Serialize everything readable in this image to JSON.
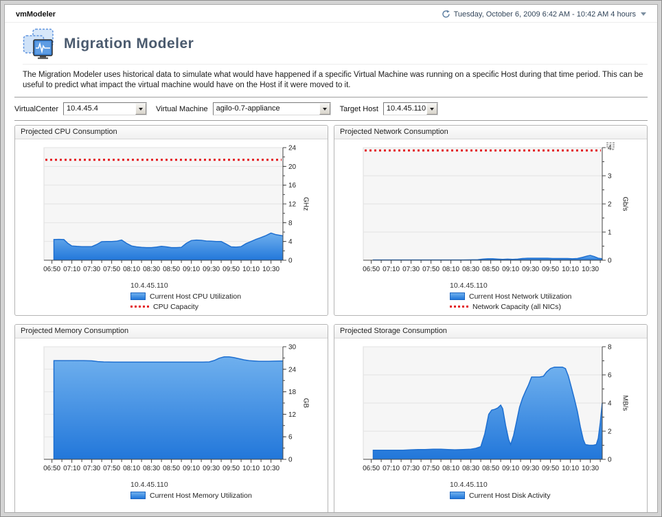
{
  "window": {
    "app_title": "vmModeler",
    "time_range_label": "Tuesday, October 6, 2009 6:42 AM - 10:42 AM 4 hours"
  },
  "header": {
    "title": "Migration Modeler",
    "description": "The Migration Modeler uses historical data to simulate what would have happened if a specific Virtual Machine was running on a specific Host during that time period. This can be useful to predict what impact the virtual machine would have on the Host if it were moved to it."
  },
  "filters": {
    "virtualcenter_label": "VirtualCenter",
    "virtualcenter_value": "10.4.45.4",
    "vm_label": "Virtual Machine",
    "vm_value": "agilo-0.7-appliance",
    "target_host_label": "Target Host",
    "target_host_value": "10.4.45.110"
  },
  "colors": {
    "area_fill_top": "#6fb0ee",
    "area_fill_bottom": "#2277da",
    "area_stroke": "#1e6fd0",
    "capacity_red": "#e3191d",
    "axis": "#444444",
    "grid": "#e3e3e3",
    "plot_bg": "#f6f6f6",
    "title_color": "#4a5a6e"
  },
  "chart_data": [
    {
      "type": "area",
      "title": "Projected CPU Consumption",
      "host": "10.4.45.110",
      "series_label": "Current Host CPU Utilization",
      "capacity_label": "CPU Capacity",
      "capacity_value": 21.4,
      "unit": "GHz",
      "ylim": [
        0,
        24
      ],
      "yticks": [
        0,
        4,
        8,
        12,
        16,
        20,
        24
      ],
      "y_minor": 2,
      "x_domain": [
        0,
        240
      ],
      "xtick_minutes": [
        8,
        28,
        48,
        68,
        88,
        108,
        128,
        148,
        168,
        188,
        208,
        228
      ],
      "xtick_labels": [
        "06:50",
        "07:10",
        "07:30",
        "07:50",
        "08:10",
        "08:30",
        "08:50",
        "09:10",
        "09:30",
        "09:50",
        "10:10",
        "10:30"
      ],
      "points": [
        [
          10,
          4.4
        ],
        [
          15,
          4.45
        ],
        [
          20,
          4.4
        ],
        [
          24,
          3.6
        ],
        [
          28,
          3.05
        ],
        [
          33,
          2.95
        ],
        [
          38,
          2.9
        ],
        [
          43,
          2.9
        ],
        [
          48,
          2.9
        ],
        [
          53,
          3.35
        ],
        [
          58,
          3.95
        ],
        [
          63,
          4.0
        ],
        [
          68,
          4.0
        ],
        [
          73,
          4.05
        ],
        [
          78,
          4.3
        ],
        [
          83,
          3.6
        ],
        [
          88,
          3.05
        ],
        [
          93,
          2.85
        ],
        [
          98,
          2.75
        ],
        [
          103,
          2.7
        ],
        [
          108,
          2.7
        ],
        [
          113,
          2.8
        ],
        [
          118,
          2.95
        ],
        [
          123,
          2.85
        ],
        [
          128,
          2.7
        ],
        [
          133,
          2.7
        ],
        [
          138,
          2.75
        ],
        [
          143,
          3.6
        ],
        [
          148,
          4.2
        ],
        [
          153,
          4.3
        ],
        [
          158,
          4.25
        ],
        [
          163,
          4.1
        ],
        [
          168,
          4.05
        ],
        [
          173,
          4.0
        ],
        [
          178,
          4.0
        ],
        [
          183,
          3.45
        ],
        [
          188,
          2.85
        ],
        [
          193,
          2.8
        ],
        [
          198,
          2.9
        ],
        [
          203,
          3.55
        ],
        [
          208,
          4.0
        ],
        [
          213,
          4.45
        ],
        [
          218,
          4.85
        ],
        [
          223,
          5.25
        ],
        [
          228,
          5.8
        ],
        [
          233,
          5.45
        ],
        [
          240,
          5.2
        ]
      ]
    },
    {
      "type": "area",
      "title": "Projected Network Consumption",
      "host": "10.4.45.110",
      "series_label": "Current Host Network Utilization",
      "capacity_label": "Network Capacity (all NICs)",
      "capacity_value": 3.9,
      "unit": "Gb/s",
      "ylim": [
        0,
        4
      ],
      "yticks": [
        0,
        1,
        2,
        3,
        4
      ],
      "y_minor": 0.5,
      "x_domain": [
        0,
        240
      ],
      "xtick_minutes": [
        8,
        28,
        48,
        68,
        88,
        108,
        128,
        148,
        168,
        188,
        208,
        228
      ],
      "xtick_labels": [
        "06:50",
        "07:10",
        "07:30",
        "07:50",
        "08:10",
        "08:30",
        "08:50",
        "09:10",
        "09:30",
        "09:50",
        "10:10",
        "10:30"
      ],
      "points": [
        [
          10,
          0.01
        ],
        [
          60,
          0.01
        ],
        [
          100,
          0.01
        ],
        [
          115,
          0.02
        ],
        [
          120,
          0.04
        ],
        [
          125,
          0.05
        ],
        [
          130,
          0.05
        ],
        [
          135,
          0.04
        ],
        [
          140,
          0.03
        ],
        [
          145,
          0.04
        ],
        [
          150,
          0.03
        ],
        [
          155,
          0.04
        ],
        [
          160,
          0.06
        ],
        [
          165,
          0.07
        ],
        [
          170,
          0.07
        ],
        [
          175,
          0.07
        ],
        [
          180,
          0.07
        ],
        [
          185,
          0.07
        ],
        [
          190,
          0.06
        ],
        [
          195,
          0.06
        ],
        [
          200,
          0.06
        ],
        [
          205,
          0.06
        ],
        [
          210,
          0.05
        ],
        [
          215,
          0.06
        ],
        [
          220,
          0.1
        ],
        [
          225,
          0.15
        ],
        [
          228,
          0.17
        ],
        [
          232,
          0.13
        ],
        [
          236,
          0.07
        ],
        [
          240,
          0.05
        ]
      ]
    },
    {
      "type": "area",
      "title": "Projected Memory Consumption",
      "host": "10.4.45.110",
      "series_label": "Current Host Memory Utilization",
      "capacity_label": null,
      "capacity_value": null,
      "unit": "GB",
      "ylim": [
        0,
        30
      ],
      "yticks": [
        0,
        6,
        12,
        18,
        24,
        30
      ],
      "y_minor": 3,
      "x_domain": [
        0,
        240
      ],
      "xtick_minutes": [
        8,
        28,
        48,
        68,
        88,
        108,
        128,
        148,
        168,
        188,
        208,
        228
      ],
      "xtick_labels": [
        "06:50",
        "07:10",
        "07:30",
        "07:50",
        "08:10",
        "08:30",
        "08:50",
        "09:10",
        "09:30",
        "09:50",
        "10:10",
        "10:30"
      ],
      "points": [
        [
          10,
          26.3
        ],
        [
          20,
          26.3
        ],
        [
          30,
          26.3
        ],
        [
          40,
          26.3
        ],
        [
          48,
          26.25
        ],
        [
          54,
          26.05
        ],
        [
          60,
          25.95
        ],
        [
          70,
          25.9
        ],
        [
          80,
          25.9
        ],
        [
          90,
          25.9
        ],
        [
          100,
          25.9
        ],
        [
          110,
          25.9
        ],
        [
          120,
          25.9
        ],
        [
          130,
          25.9
        ],
        [
          140,
          25.9
        ],
        [
          150,
          25.9
        ],
        [
          160,
          25.9
        ],
        [
          166,
          25.95
        ],
        [
          171,
          26.35
        ],
        [
          176,
          26.95
        ],
        [
          181,
          27.3
        ],
        [
          186,
          27.3
        ],
        [
          191,
          27.1
        ],
        [
          196,
          26.8
        ],
        [
          201,
          26.5
        ],
        [
          206,
          26.3
        ],
        [
          211,
          26.2
        ],
        [
          216,
          26.1
        ],
        [
          221,
          26.1
        ],
        [
          226,
          26.1
        ],
        [
          231,
          26.15
        ],
        [
          240,
          26.2
        ]
      ]
    },
    {
      "type": "area",
      "title": "Projected Storage Consumption",
      "host": "10.4.45.110",
      "series_label": "Current Host Disk Activity",
      "capacity_label": null,
      "capacity_value": null,
      "unit": "MB/s",
      "ylim": [
        0,
        8
      ],
      "yticks": [
        0,
        2,
        4,
        6,
        8
      ],
      "y_minor": 1,
      "x_domain": [
        0,
        240
      ],
      "xtick_minutes": [
        8,
        28,
        48,
        68,
        88,
        108,
        128,
        148,
        168,
        188,
        208,
        228
      ],
      "xtick_labels": [
        "06:50",
        "07:10",
        "07:30",
        "07:50",
        "08:10",
        "08:30",
        "08:50",
        "09:10",
        "09:30",
        "09:50",
        "10:10",
        "10:30"
      ],
      "points": [
        [
          10,
          0.65
        ],
        [
          20,
          0.65
        ],
        [
          30,
          0.65
        ],
        [
          40,
          0.65
        ],
        [
          48,
          0.68
        ],
        [
          55,
          0.7
        ],
        [
          62,
          0.7
        ],
        [
          70,
          0.72
        ],
        [
          78,
          0.72
        ],
        [
          85,
          0.7
        ],
        [
          92,
          0.68
        ],
        [
          100,
          0.7
        ],
        [
          108,
          0.72
        ],
        [
          113,
          0.78
        ],
        [
          118,
          0.9
        ],
        [
          122,
          1.8
        ],
        [
          126,
          3.2
        ],
        [
          129,
          3.5
        ],
        [
          132,
          3.55
        ],
        [
          135,
          3.65
        ],
        [
          138,
          3.85
        ],
        [
          140,
          3.6
        ],
        [
          143,
          2.4
        ],
        [
          146,
          1.4
        ],
        [
          148,
          1.05
        ],
        [
          151,
          1.7
        ],
        [
          154,
          2.7
        ],
        [
          157,
          3.7
        ],
        [
          160,
          4.35
        ],
        [
          163,
          4.85
        ],
        [
          166,
          5.3
        ],
        [
          169,
          5.85
        ],
        [
          173,
          5.85
        ],
        [
          177,
          5.85
        ],
        [
          181,
          5.9
        ],
        [
          184,
          6.2
        ],
        [
          188,
          6.45
        ],
        [
          192,
          6.55
        ],
        [
          196,
          6.55
        ],
        [
          200,
          6.55
        ],
        [
          203,
          6.45
        ],
        [
          206,
          5.9
        ],
        [
          209,
          5.1
        ],
        [
          212,
          4.3
        ],
        [
          215,
          3.4
        ],
        [
          218,
          2.3
        ],
        [
          221,
          1.4
        ],
        [
          223,
          1.05
        ],
        [
          227,
          1.0
        ],
        [
          231,
          1.0
        ],
        [
          234,
          1.05
        ],
        [
          236,
          1.5
        ],
        [
          238,
          2.6
        ],
        [
          240,
          4.0
        ]
      ]
    }
  ]
}
